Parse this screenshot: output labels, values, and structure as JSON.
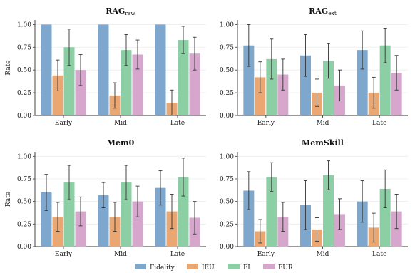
{
  "chart_data": [
    {
      "type": "bar",
      "title": "RAG",
      "title_sub": "raw",
      "ylabel": "Rate",
      "ylim": [
        0,
        1.05
      ],
      "yticks": [
        "0.00",
        "0.25",
        "0.50",
        "0.75",
        "1.00"
      ],
      "categories": [
        "Early",
        "Mid",
        "Late"
      ],
      "series": [
        {
          "name": "Fidelity",
          "values": [
            1.0,
            1.0,
            1.0
          ],
          "err": [
            0.0,
            0.0,
            0.0
          ]
        },
        {
          "name": "IEU",
          "values": [
            0.44,
            0.22,
            0.14
          ],
          "err": [
            0.17,
            0.14,
            0.14
          ]
        },
        {
          "name": "FI",
          "values": [
            0.75,
            0.72,
            0.83
          ],
          "err": [
            0.2,
            0.17,
            0.15
          ]
        },
        {
          "name": "FUR",
          "values": [
            0.5,
            0.67,
            0.68
          ],
          "err": [
            0.17,
            0.16,
            0.18
          ]
        }
      ]
    },
    {
      "type": "bar",
      "title": "RAG",
      "title_sub": "ext",
      "ylabel": "",
      "ylim": [
        0,
        1.05
      ],
      "yticks": [
        "0.00",
        "0.25",
        "0.50",
        "0.75",
        "1.00"
      ],
      "categories": [
        "Early",
        "Mid",
        "Late"
      ],
      "series": [
        {
          "name": "Fidelity",
          "values": [
            0.77,
            0.66,
            0.72
          ],
          "err": [
            0.23,
            0.23,
            0.21
          ]
        },
        {
          "name": "IEU",
          "values": [
            0.42,
            0.25,
            0.25
          ],
          "err": [
            0.17,
            0.15,
            0.17
          ]
        },
        {
          "name": "FI",
          "values": [
            0.62,
            0.6,
            0.77
          ],
          "err": [
            0.22,
            0.19,
            0.19
          ]
        },
        {
          "name": "FUR",
          "values": [
            0.45,
            0.33,
            0.47
          ],
          "err": [
            0.17,
            0.17,
            0.19
          ]
        }
      ]
    },
    {
      "type": "bar",
      "title": "Mem0",
      "title_sub": "",
      "ylabel": "Rate",
      "ylim": [
        0,
        1.05
      ],
      "yticks": [
        "0.00",
        "0.25",
        "0.50",
        "0.75",
        "1.00"
      ],
      "categories": [
        "Early",
        "Mid",
        "Late"
      ],
      "series": [
        {
          "name": "Fidelity",
          "values": [
            0.6,
            0.57,
            0.65
          ],
          "err": [
            0.2,
            0.14,
            0.19
          ]
        },
        {
          "name": "IEU",
          "values": [
            0.33,
            0.33,
            0.39
          ],
          "err": [
            0.16,
            0.16,
            0.19
          ]
        },
        {
          "name": "FI",
          "values": [
            0.71,
            0.71,
            0.77
          ],
          "err": [
            0.19,
            0.19,
            0.21
          ]
        },
        {
          "name": "FUR",
          "values": [
            0.39,
            0.5,
            0.32
          ],
          "err": [
            0.16,
            0.17,
            0.18
          ]
        }
      ]
    },
    {
      "type": "bar",
      "title": "MemSkill",
      "title_sub": "",
      "ylabel": "",
      "ylim": [
        0,
        1.05
      ],
      "yticks": [
        "0.00",
        "0.25",
        "0.50",
        "0.75",
        "1.00"
      ],
      "categories": [
        "Early",
        "Mid",
        "Late"
      ],
      "series": [
        {
          "name": "Fidelity",
          "values": [
            0.62,
            0.46,
            0.5
          ],
          "err": [
            0.21,
            0.27,
            0.23
          ]
        },
        {
          "name": "IEU",
          "values": [
            0.17,
            0.19,
            0.21
          ],
          "err": [
            0.13,
            0.13,
            0.16
          ]
        },
        {
          "name": "FI",
          "values": [
            0.77,
            0.79,
            0.64
          ],
          "err": [
            0.16,
            0.16,
            0.21
          ]
        },
        {
          "name": "FUR",
          "values": [
            0.33,
            0.36,
            0.39
          ],
          "err": [
            0.16,
            0.17,
            0.19
          ]
        }
      ]
    }
  ],
  "legend": {
    "placement": "bottom-center",
    "items": [
      {
        "label": "Fidelity",
        "color": "#7ea7cd"
      },
      {
        "label": "IEU",
        "color": "#eaa772"
      },
      {
        "label": "FI",
        "color": "#8dcfa5"
      },
      {
        "label": "FUR",
        "color": "#d6a6cc"
      }
    ]
  }
}
